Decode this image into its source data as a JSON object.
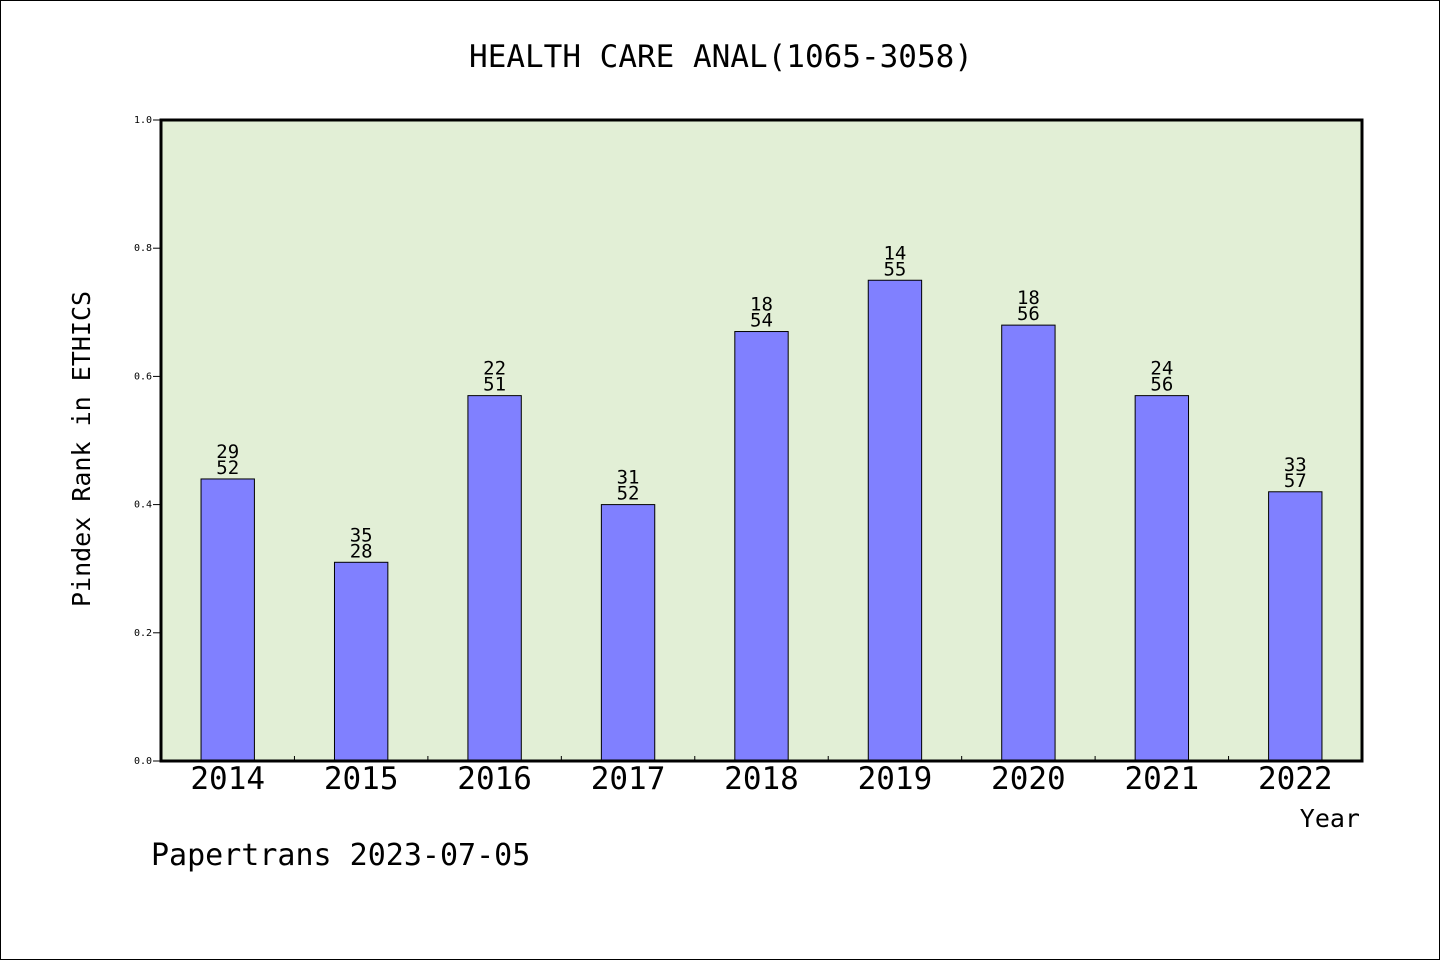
{
  "chart_data": {
    "type": "bar",
    "title": "HEALTH CARE ANAL(1065-3058)",
    "xlabel": "Year",
    "ylabel": "Pindex Rank in ETHICS",
    "footer": "Papertrans 2023-07-05",
    "ylim": [
      0,
      1.0
    ],
    "yticks": [
      "0.0",
      "0.2",
      "0.4",
      "0.6",
      "0.8",
      "1.0"
    ],
    "categories": [
      "2014",
      "2015",
      "2016",
      "2017",
      "2018",
      "2019",
      "2020",
      "2021",
      "2022"
    ],
    "values": [
      0.44,
      0.31,
      0.57,
      0.4,
      0.67,
      0.75,
      0.68,
      0.57,
      0.42
    ],
    "labels_top": [
      "29",
      "35",
      "22",
      "31",
      "18",
      "14",
      "18",
      "24",
      "33"
    ],
    "labels_bottom": [
      "52",
      "28",
      "51",
      "52",
      "54",
      "55",
      "56",
      "56",
      "57"
    ],
    "grid": false,
    "colors": {
      "bar": "#8080ff",
      "plot_background": "#e2efd6"
    }
  }
}
